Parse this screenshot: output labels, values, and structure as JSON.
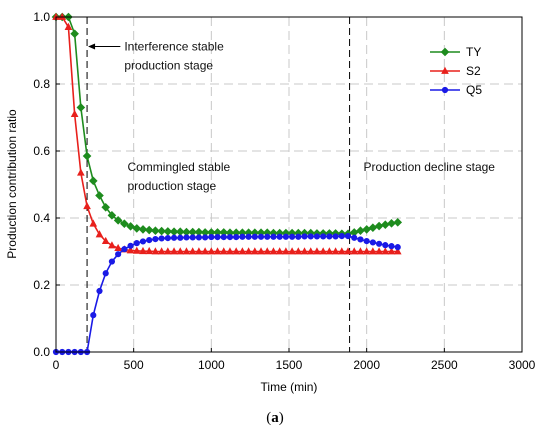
{
  "caption": {
    "open": "(",
    "letter": "a",
    "close": ")"
  },
  "chart_data": {
    "type": "line",
    "title": "",
    "xlabel": "Time (min)",
    "ylabel": "Production contribution ratio",
    "xlim": [
      0,
      3000
    ],
    "ylim": [
      0,
      1.0
    ],
    "xticks": [
      0,
      500,
      1000,
      1500,
      2000,
      2500,
      3000
    ],
    "yticks": [
      0.0,
      0.2,
      0.4,
      0.6,
      0.8,
      1.0
    ],
    "ytick_labels": [
      "0.0",
      "0.2",
      "0.4",
      "0.6",
      "0.8",
      "1.0"
    ],
    "grid": true,
    "legend_position": "top-right",
    "stage_lines_x": [
      200,
      1890
    ],
    "annotations": [
      {
        "id": "interference",
        "lines": [
          "Interference stable",
          "production stage"
        ],
        "x": 440,
        "y": 0.9,
        "arrow_to_x": 200
      },
      {
        "id": "commingled",
        "lines": [
          "Commingled stable",
          "production stage"
        ],
        "x": 460,
        "y": 0.54
      },
      {
        "id": "decline",
        "lines": [
          "Production decline stage"
        ],
        "x": 1980,
        "y": 0.54
      }
    ],
    "series": [
      {
        "name": "TY",
        "color": "#1e8c1e",
        "marker": "diamond",
        "x": [
          0,
          40,
          80,
          120,
          160,
          200,
          240,
          280,
          320,
          360,
          400,
          440,
          480,
          520,
          560,
          600,
          640,
          680,
          720,
          760,
          800,
          840,
          880,
          920,
          960,
          1000,
          1040,
          1080,
          1120,
          1160,
          1200,
          1240,
          1280,
          1320,
          1360,
          1400,
          1440,
          1480,
          1520,
          1560,
          1600,
          1640,
          1680,
          1720,
          1760,
          1800,
          1840,
          1880,
          1920,
          1960,
          2000,
          2040,
          2080,
          2120,
          2160,
          2200
        ],
        "values": [
          1.0,
          1.0,
          1.0,
          0.95,
          0.73,
          0.585,
          0.511,
          0.467,
          0.432,
          0.408,
          0.393,
          0.383,
          0.375,
          0.369,
          0.366,
          0.364,
          0.362,
          0.361,
          0.36,
          0.359,
          0.359,
          0.358,
          0.358,
          0.358,
          0.357,
          0.357,
          0.357,
          0.357,
          0.356,
          0.356,
          0.356,
          0.356,
          0.356,
          0.356,
          0.356,
          0.355,
          0.355,
          0.355,
          0.355,
          0.355,
          0.355,
          0.355,
          0.354,
          0.354,
          0.354,
          0.354,
          0.353,
          0.353,
          0.357,
          0.362,
          0.366,
          0.371,
          0.376,
          0.38,
          0.384,
          0.387
        ]
      },
      {
        "name": "S2",
        "color": "#e8201c",
        "marker": "triangle",
        "x": [
          0,
          40,
          80,
          120,
          160,
          200,
          240,
          280,
          320,
          360,
          400,
          440,
          480,
          520,
          560,
          600,
          640,
          680,
          720,
          760,
          800,
          840,
          880,
          920,
          960,
          1000,
          1040,
          1080,
          1120,
          1160,
          1200,
          1240,
          1280,
          1320,
          1360,
          1400,
          1440,
          1480,
          1520,
          1560,
          1600,
          1640,
          1680,
          1720,
          1760,
          1800,
          1840,
          1880,
          1920,
          1960,
          2000,
          2040,
          2080,
          2120,
          2160,
          2200
        ],
        "values": [
          1.0,
          1.0,
          0.97,
          0.71,
          0.535,
          0.435,
          0.383,
          0.351,
          0.331,
          0.318,
          0.31,
          0.306,
          0.303,
          0.302,
          0.301,
          0.301,
          0.3,
          0.3,
          0.3,
          0.3,
          0.3,
          0.3,
          0.3,
          0.3,
          0.3,
          0.3,
          0.3,
          0.3,
          0.3,
          0.3,
          0.3,
          0.3,
          0.3,
          0.3,
          0.3,
          0.3,
          0.3,
          0.3,
          0.3,
          0.3,
          0.3,
          0.3,
          0.3,
          0.3,
          0.3,
          0.3,
          0.3,
          0.3,
          0.3,
          0.3,
          0.3,
          0.3,
          0.3,
          0.3,
          0.3,
          0.3
        ]
      },
      {
        "name": "Q5",
        "color": "#1a1ae6",
        "marker": "circle",
        "x": [
          0,
          40,
          80,
          120,
          160,
          200,
          240,
          280,
          320,
          360,
          400,
          440,
          480,
          520,
          560,
          600,
          640,
          680,
          720,
          760,
          800,
          840,
          880,
          920,
          960,
          1000,
          1040,
          1080,
          1120,
          1160,
          1200,
          1240,
          1280,
          1320,
          1360,
          1400,
          1440,
          1480,
          1520,
          1560,
          1600,
          1640,
          1680,
          1720,
          1760,
          1800,
          1840,
          1880,
          1920,
          1960,
          2000,
          2040,
          2080,
          2120,
          2160,
          2200
        ],
        "values": [
          0.0,
          0.0,
          0.0,
          0.0,
          0.0,
          0.0,
          0.11,
          0.182,
          0.235,
          0.27,
          0.292,
          0.307,
          0.317,
          0.325,
          0.33,
          0.334,
          0.337,
          0.339,
          0.34,
          0.341,
          0.341,
          0.342,
          0.342,
          0.342,
          0.342,
          0.343,
          0.343,
          0.343,
          0.343,
          0.343,
          0.344,
          0.344,
          0.344,
          0.344,
          0.344,
          0.344,
          0.344,
          0.344,
          0.344,
          0.344,
          0.345,
          0.345,
          0.345,
          0.345,
          0.345,
          0.345,
          0.346,
          0.346,
          0.341,
          0.336,
          0.331,
          0.327,
          0.323,
          0.319,
          0.316,
          0.313
        ]
      }
    ]
  }
}
